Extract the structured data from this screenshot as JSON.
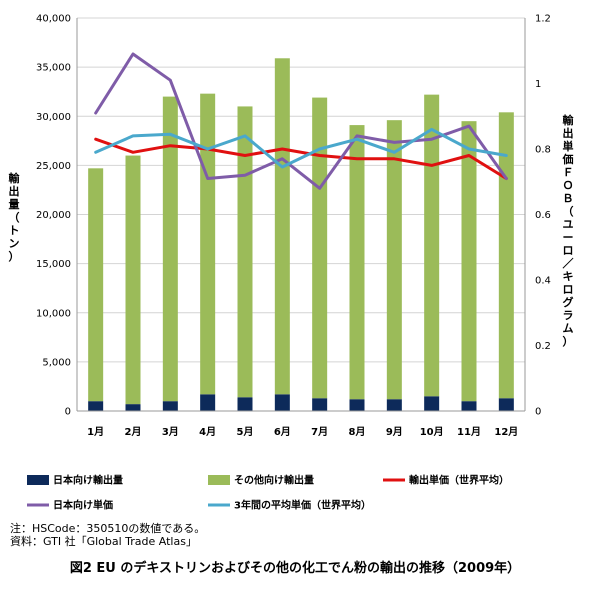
{
  "chart_data": {
    "type": "bar",
    "categories": [
      "1月",
      "2月",
      "3月",
      "4月",
      "5月",
      "6月",
      "7月",
      "8月",
      "9月",
      "10月",
      "11月",
      "12月"
    ],
    "series": [
      {
        "name": "日本向け輸出量",
        "kind": "bar",
        "axis": "left",
        "values": [
          1000,
          700,
          1000,
          1700,
          1400,
          1700,
          1300,
          1200,
          1200,
          1500,
          1000,
          1300
        ]
      },
      {
        "name": "その他向け輸出量",
        "kind": "bar",
        "axis": "left",
        "values": [
          23700,
          25300,
          31000,
          30600,
          29600,
          34200,
          30600,
          27900,
          28400,
          30700,
          28500,
          29100
        ]
      },
      {
        "name": "輸出単価（世界平均）",
        "kind": "line",
        "axis": "right",
        "values": [
          0.83,
          0.79,
          0.81,
          0.8,
          0.78,
          0.8,
          0.78,
          0.77,
          0.77,
          0.75,
          0.78,
          0.71
        ]
      },
      {
        "name": "日本向け単価",
        "kind": "line",
        "axis": "right",
        "values": [
          0.91,
          1.09,
          1.01,
          0.71,
          0.72,
          0.77,
          0.68,
          0.84,
          0.82,
          0.83,
          0.87,
          0.71
        ]
      },
      {
        "name": "3年間の平均単価（世界平均）",
        "kind": "line",
        "axis": "right",
        "values": [
          0.79,
          0.84,
          0.845,
          0.8,
          0.84,
          0.745,
          0.8,
          0.83,
          0.79,
          0.86,
          0.8,
          0.78
        ]
      }
    ],
    "y_left": {
      "label": "輸出量（トン）",
      "range": [
        0,
        40000
      ],
      "ticks": [
        "0",
        "5,000",
        "10,000",
        "15,000",
        "20,000",
        "25,000",
        "30,000",
        "35,000",
        "40,000"
      ]
    },
    "y_right": {
      "label": "輸出単価ＦＯＢ（ユーロ／キログラム）",
      "range": [
        0,
        1.2
      ],
      "ticks": [
        "0",
        "0.2",
        "0.4",
        "0.6",
        "0.8",
        "1",
        "1.2"
      ]
    },
    "grid": true,
    "legend": "bottom",
    "colors": {
      "japan_bar": "#0d2a5a",
      "other_bar": "#9bbb59",
      "world_price": "#e01010",
      "japan_price": "#7f5ca8",
      "avg_price": "#4aa8cc",
      "grid": "#d4d4d4"
    }
  },
  "notes": [
    "注：HSCode：350510の数値である。",
    "資料：GTI 社「Global Trade Atlas」"
  ],
  "caption": "図2 EU のデキストリンおよびその他の化工でん粉の輸出の推移（2009年）"
}
